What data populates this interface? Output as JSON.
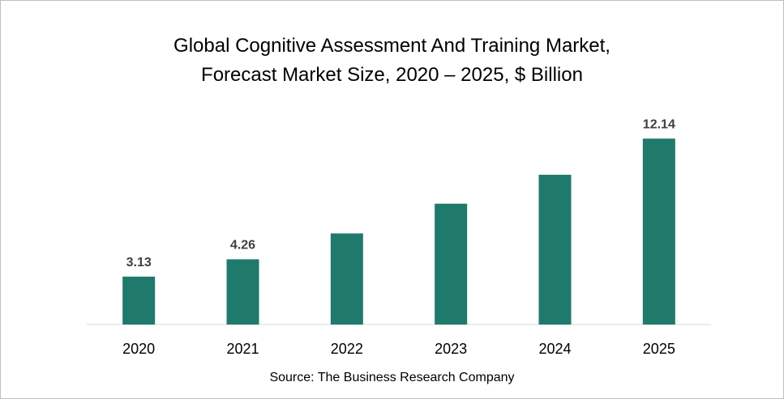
{
  "chart_data": {
    "type": "bar",
    "title_line1": "Global Cognitive Assessment And Training Market,",
    "title_line2": "Forecast Market Size, 2020 – 2025, $ Billion",
    "categories": [
      "2020",
      "2021",
      "2022",
      "2023",
      "2024",
      "2025"
    ],
    "values": [
      3.13,
      4.26,
      5.95,
      7.89,
      9.78,
      12.14
    ],
    "data_labels": [
      "3.13",
      "4.26",
      "",
      "",
      "",
      "12.14"
    ],
    "source": "Source: The Business Research Company",
    "bar_color": "#1f7a6c",
    "ylim": [
      0,
      13
    ],
    "grid": false,
    "legend": "none"
  }
}
